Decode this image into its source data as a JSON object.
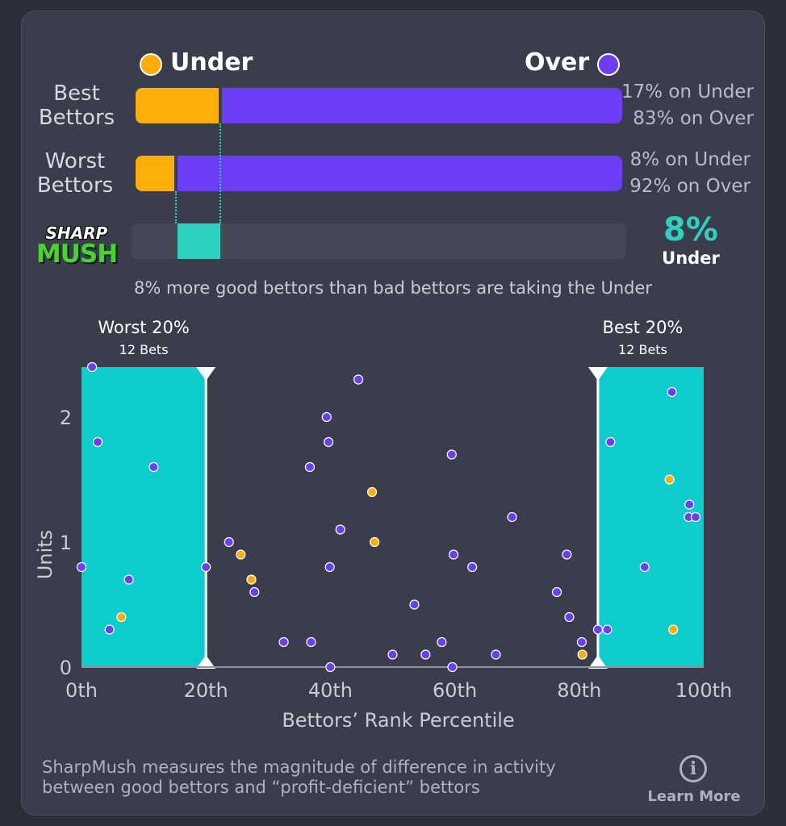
{
  "legend": {
    "under_label": "Under",
    "over_label": "Over"
  },
  "bars": {
    "best": {
      "label_line1": "Best",
      "label_line2": "Bettors",
      "under_pct": 17,
      "over_pct": 83,
      "under_text": "17% on Under",
      "over_text": "83% on Over"
    },
    "worst": {
      "label_line1": "Worst",
      "label_line2": "Bettors",
      "under_pct": 8,
      "over_pct": 92,
      "under_text": "8% on Under",
      "over_text": "92% on Over"
    }
  },
  "sharpmush": {
    "logo_top": "SHARP",
    "logo_bottom": "MUSH",
    "pct_text": "8%",
    "direction": "Under",
    "diff_pct": 8
  },
  "summary_text": "8% more good bettors than bad bettors are taking the Under",
  "colors": {
    "under": "#ffad0a",
    "over": "#6c3ef5",
    "band": "#0dcccc",
    "mush": "#2ed0c1"
  },
  "chart_data": {
    "type": "scatter",
    "xlabel": "Bettors’ Rank Percentile",
    "ylabel": "Units",
    "xlim": [
      0,
      100
    ],
    "ylim": [
      0,
      2.4
    ],
    "x_ticks": [
      0,
      20,
      40,
      60,
      80,
      100
    ],
    "x_tick_labels": [
      "0th",
      "20th",
      "40th",
      "60th",
      "80th",
      "100th"
    ],
    "y_ticks": [
      0,
      1,
      2
    ],
    "y_tick_labels": [
      "0",
      "1",
      "2"
    ],
    "bands": [
      {
        "label": "Worst 20%",
        "sublabel": "12 Bets",
        "x_start": 0,
        "x_end": 20
      },
      {
        "label": "Best 20%",
        "sublabel": "12 Bets",
        "x_start": 83,
        "x_end": 100
      }
    ],
    "series": [
      {
        "name": "Under",
        "color": "#ffad0a",
        "points": [
          [
            6.4,
            0.4
          ],
          [
            25.6,
            0.9
          ],
          [
            27.3,
            0.7
          ],
          [
            46.7,
            1.4
          ],
          [
            47.1,
            1.0
          ],
          [
            80.5,
            0.1
          ],
          [
            94.5,
            1.5
          ],
          [
            95.1,
            0.3
          ]
        ]
      },
      {
        "name": "Over",
        "color": "#6c3ef5",
        "points": [
          [
            0,
            0.8
          ],
          [
            1.7,
            2.4
          ],
          [
            2.6,
            1.8
          ],
          [
            4.5,
            0.3
          ],
          [
            7.6,
            0.7
          ],
          [
            11.6,
            1.6
          ],
          [
            20,
            0.8
          ],
          [
            23.7,
            1.0
          ],
          [
            27.8,
            0.6
          ],
          [
            32.5,
            0.2
          ],
          [
            36.7,
            1.6
          ],
          [
            36.9,
            0.2
          ],
          [
            39.4,
            2.0
          ],
          [
            39.7,
            1.8
          ],
          [
            39.9,
            0.8
          ],
          [
            40.0,
            0.0
          ],
          [
            41.6,
            1.1
          ],
          [
            44.5,
            2.3
          ],
          [
            50.0,
            0.1
          ],
          [
            53.5,
            0.5
          ],
          [
            55.3,
            0.1
          ],
          [
            57.9,
            0.2
          ],
          [
            59.5,
            1.7
          ],
          [
            59.6,
            0.0
          ],
          [
            59.8,
            0.9
          ],
          [
            62.8,
            0.8
          ],
          [
            66.6,
            0.1
          ],
          [
            69.2,
            1.2
          ],
          [
            76.4,
            0.6
          ],
          [
            78.0,
            0.9
          ],
          [
            78.4,
            0.4
          ],
          [
            80.4,
            0.2
          ],
          [
            83.0,
            0.3
          ],
          [
            84.5,
            0.3
          ],
          [
            85.0,
            1.8
          ],
          [
            90.5,
            0.8
          ],
          [
            94.9,
            2.2
          ],
          [
            97.7,
            1.3
          ],
          [
            97.6,
            1.2
          ],
          [
            98.7,
            1.2
          ]
        ]
      }
    ]
  },
  "footer": {
    "line1": "SharpMush measures the magnitude of difference in activity",
    "line2": "between good bettors and “profit-deficient” bettors",
    "info_glyph": "i",
    "learn_more": "Learn More"
  }
}
